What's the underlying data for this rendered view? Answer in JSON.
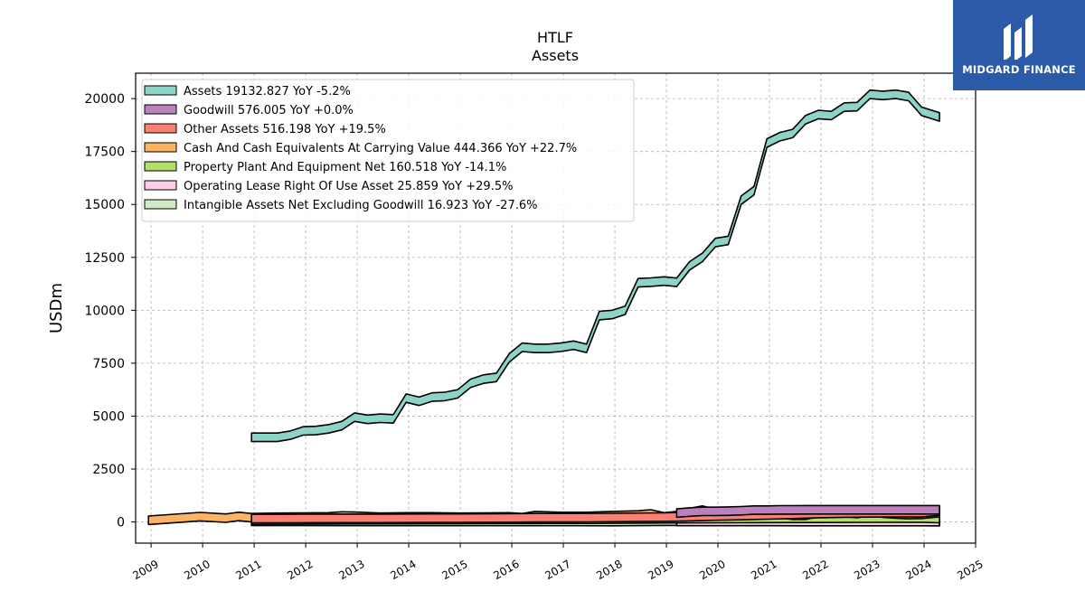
{
  "brand": {
    "name": "MIDGARD FINANCE",
    "bg_color": "#2b5aa8"
  },
  "chart_data": {
    "type": "area",
    "title": "HTLF",
    "subtitle": "Assets",
    "xlabel": "",
    "ylabel": "USDm",
    "xlim": [
      2008.7,
      2025.0
    ],
    "ylim": [
      -1000,
      21200
    ],
    "x_ticks": [
      "2009",
      "2010",
      "2011",
      "2012",
      "2013",
      "2014",
      "2015",
      "2016",
      "2017",
      "2018",
      "2019",
      "2020",
      "2021",
      "2022",
      "2023",
      "2024",
      "2025"
    ],
    "y_ticks": [
      "0",
      "2500",
      "5000",
      "7500",
      "10000",
      "12500",
      "15000",
      "17500",
      "20000"
    ],
    "grid": true,
    "legend_position": "top-left",
    "series": [
      {
        "name": "Assets",
        "legend": "Assets  19132.827 YoY -5.2%",
        "color": "#8dd3c7",
        "x": [
          2010.95,
          2011.45,
          2011.7,
          2011.95,
          2012.2,
          2012.45,
          2012.7,
          2012.95,
          2013.2,
          2013.45,
          2013.7,
          2013.95,
          2014.2,
          2014.45,
          2014.7,
          2014.95,
          2015.2,
          2015.45,
          2015.7,
          2015.95,
          2016.2,
          2016.45,
          2016.7,
          2016.95,
          2017.2,
          2017.45,
          2017.7,
          2017.95,
          2018.2,
          2018.45,
          2018.7,
          2018.95,
          2019.2,
          2019.45,
          2019.7,
          2019.95,
          2020.2,
          2020.45,
          2020.7,
          2020.95,
          2021.2,
          2021.45,
          2021.7,
          2021.95,
          2022.2,
          2022.45,
          2022.7,
          2022.95,
          2023.2,
          2023.45,
          2023.7,
          2023.95,
          2024.3
        ],
        "y": [
          4000,
          4000,
          4100,
          4300,
          4320,
          4400,
          4550,
          4950,
          4850,
          4900,
          4870,
          5850,
          5700,
          5900,
          5930,
          6050,
          6550,
          6750,
          6830,
          7750,
          8250,
          8200,
          8200,
          8250,
          8350,
          8200,
          9750,
          9800,
          10000,
          11300,
          11330,
          11380,
          11320,
          12100,
          12500,
          13200,
          13300,
          15200,
          15650,
          17900,
          18200,
          18350,
          19000,
          19250,
          19200,
          19600,
          19620,
          20200,
          20150,
          20200,
          20100,
          19400,
          19133
        ]
      },
      {
        "name": "Goodwill",
        "legend": "Goodwill  576.005 YoY +0.0%",
        "color": "#bc80bd",
        "x": [
          2019.2,
          2019.45,
          2019.7,
          2019.95,
          2020.2,
          2020.45,
          2020.7,
          2020.95,
          2021.2,
          2021.45,
          2021.7,
          2021.95,
          2022.2,
          2022.45,
          2022.7,
          2022.95,
          2023.2,
          2023.45,
          2023.7,
          2023.95,
          2024.3
        ],
        "y": [
          420,
          470,
          500,
          500,
          510,
          530,
          560,
          560,
          570,
          570,
          576,
          576,
          576,
          576,
          576,
          576,
          576,
          576,
          576,
          576,
          576
        ]
      },
      {
        "name": "Other Assets",
        "legend": "Other Assets  516.198 YoY +19.5%",
        "color": "#fb8072",
        "x": [
          2010.95,
          2011.45,
          2011.95,
          2012.45,
          2012.95,
          2013.45,
          2013.95,
          2014.45,
          2014.95,
          2015.45,
          2015.95,
          2016.45,
          2016.95,
          2017.45,
          2017.95,
          2018.45,
          2018.95,
          2019.45,
          2019.95,
          2020.45,
          2020.95,
          2021.45,
          2021.95,
          2022.45,
          2022.95,
          2023.45,
          2023.95,
          2024.3
        ],
        "y": [
          160,
          160,
          165,
          170,
          170,
          170,
          175,
          180,
          180,
          185,
          190,
          200,
          200,
          205,
          210,
          220,
          230,
          250,
          280,
          300,
          330,
          360,
          400,
          420,
          430,
          440,
          432,
          516
        ]
      },
      {
        "name": "Cash And Cash Equivalents At Carrying Value",
        "legend": "Cash And Cash Equivalents At Carrying Value  444.366 YoY +22.7%",
        "color": "#fdb462",
        "x": [
          2008.95,
          2009.95,
          2010.45,
          2010.7,
          2010.95,
          2011.45,
          2011.95,
          2012.45,
          2012.7,
          2012.95,
          2013.45,
          2013.95,
          2014.45,
          2014.95,
          2015.45,
          2015.95,
          2016.2,
          2016.45,
          2016.95,
          2017.45,
          2017.95,
          2018.45,
          2018.7,
          2018.95,
          2019.2,
          2019.45,
          2019.7,
          2019.95,
          2020.2,
          2020.45,
          2020.7,
          2020.95,
          2021.2,
          2021.45,
          2021.7,
          2021.95,
          2022.2,
          2022.45,
          2022.7,
          2022.95,
          2023.2,
          2023.45,
          2023.7,
          2023.95,
          2024.3
        ],
        "y": [
          80,
          250,
          180,
          260,
          200,
          220,
          230,
          240,
          280,
          270,
          220,
          240,
          240,
          220,
          230,
          240,
          200,
          300,
          260,
          260,
          300,
          330,
          380,
          240,
          300,
          450,
          560,
          400,
          420,
          300,
          460,
          450,
          400,
          320,
          320,
          440,
          500,
          450,
          400,
          500,
          420,
          380,
          350,
          362,
          444
        ]
      },
      {
        "name": "Property Plant And Equipment Net",
        "legend": "Property Plant And Equipment Net  160.518 YoY -14.1%",
        "color": "#b3de69",
        "x": [
          2010.95,
          2011.95,
          2012.95,
          2013.95,
          2014.95,
          2015.95,
          2016.95,
          2017.95,
          2018.95,
          2019.95,
          2020.95,
          2021.95,
          2022.95,
          2023.95,
          2024.3
        ],
        "y": [
          90,
          100,
          110,
          115,
          120,
          125,
          130,
          135,
          150,
          160,
          170,
          175,
          180,
          187,
          160
        ]
      },
      {
        "name": "Operating Lease Right Of Use Asset",
        "legend": "Operating Lease Right Of Use Asset  25.859 YoY +29.5%",
        "color": "#fccde5",
        "x": [
          2019.2,
          2019.95,
          2020.95,
          2021.95,
          2022.95,
          2023.95,
          2024.3
        ],
        "y": [
          22,
          24,
          22,
          21,
          20,
          20,
          26
        ]
      },
      {
        "name": "Intangible Assets Net Excluding Goodwill",
        "legend": "Intangible Assets Net Excluding Goodwill  16.923 YoY -27.6%",
        "color": "#ccebc5",
        "x": [
          2010.95,
          2011.95,
          2012.95,
          2013.95,
          2014.95,
          2015.95,
          2016.95,
          2017.95,
          2018.95,
          2019.95,
          2020.95,
          2021.95,
          2022.95,
          2023.95,
          2024.3
        ],
        "y": [
          30,
          28,
          26,
          25,
          24,
          22,
          22,
          20,
          35,
          30,
          28,
          25,
          22,
          23,
          17
        ]
      }
    ]
  }
}
